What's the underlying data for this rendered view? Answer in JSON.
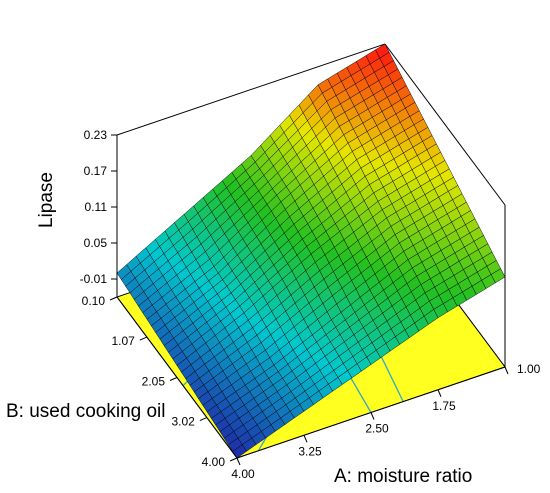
{
  "chart_data": {
    "type": "surface3d",
    "zlabel": "Lipase",
    "xlabel": "A: moisture ratio",
    "ylabel": "B: used cooking oil",
    "z_ticks": [
      "0.23",
      "0.17",
      "0.11",
      "0.05",
      "-0.01"
    ],
    "z_range": [
      -0.04,
      0.23
    ],
    "x_ticks": [
      "1.00",
      "1.75",
      "2.50",
      "3.25",
      "4.00"
    ],
    "x_range": [
      1.0,
      4.0
    ],
    "y_ticks": [
      "0.10",
      "1.07",
      "2.05",
      "3.02",
      "4.00"
    ],
    "y_range": [
      0.1,
      4.0
    ],
    "surface": {
      "grid_x": [
        1.0,
        1.75,
        2.5,
        3.25,
        4.0
      ],
      "grid_y": [
        0.1,
        1.07,
        2.05,
        3.02,
        4.0
      ],
      "z": [
        [
          0.23,
          0.2,
          0.12,
          0.06,
          0.0
        ],
        [
          0.2,
          0.17,
          0.11,
          0.04,
          -0.01
        ],
        [
          0.17,
          0.14,
          0.09,
          0.03,
          -0.02
        ],
        [
          0.14,
          0.11,
          0.06,
          0.01,
          -0.03
        ],
        [
          0.11,
          0.08,
          0.04,
          0.0,
          -0.04
        ]
      ]
    },
    "colors": {
      "surface_colormap": [
        "#1f2aa8",
        "#00c8d0",
        "#22c020",
        "#e6e600",
        "#ff1010"
      ],
      "floor": "#ffff20",
      "contour": "#30a8c8",
      "mesh": "#000000"
    }
  }
}
